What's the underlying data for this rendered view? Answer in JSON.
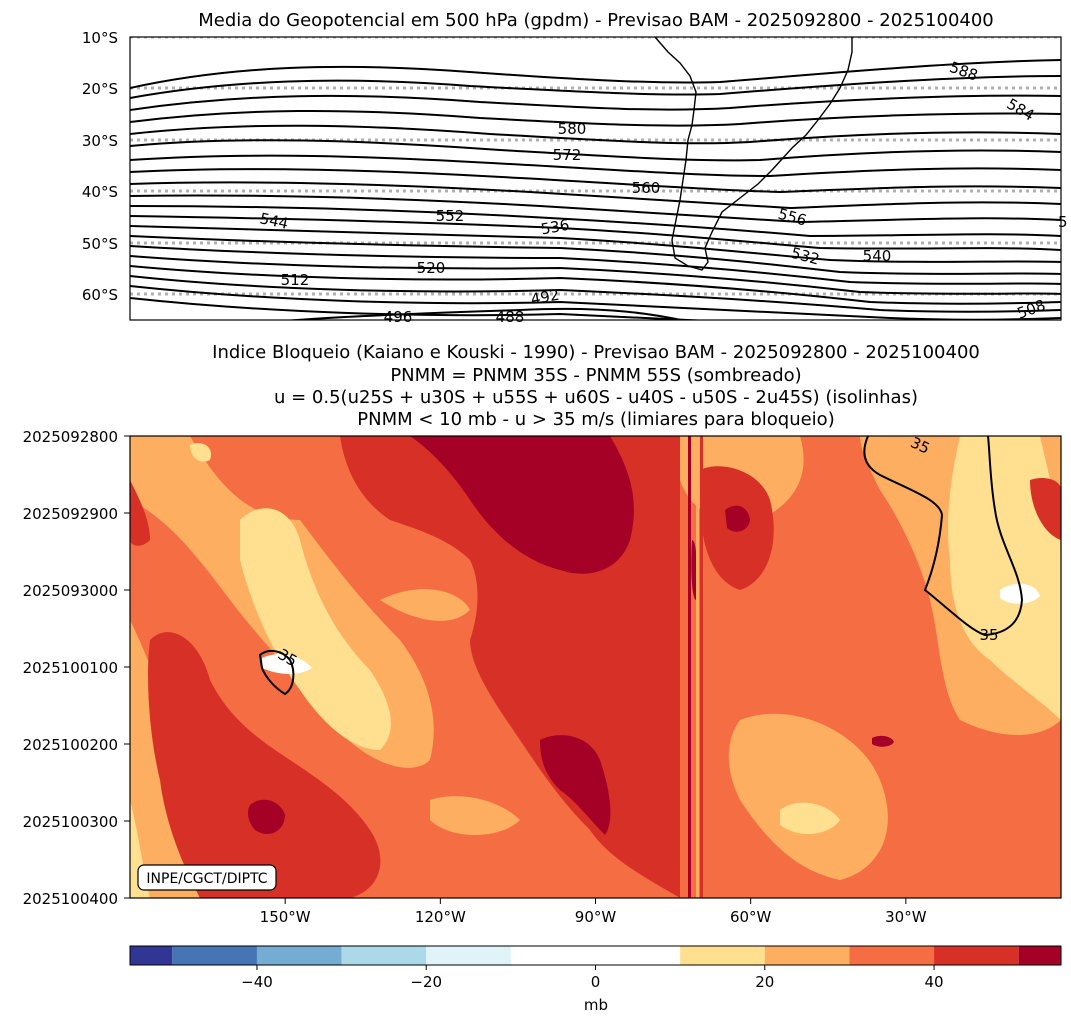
{
  "chart_data": [
    {
      "type": "contour",
      "title": "Media do Geopotencial em 500 hPa (gpdm) - Previsao BAM - 2025092800 - 2025100400",
      "y_ticks": [
        "10°S",
        "20°S",
        "30°S",
        "40°S",
        "50°S",
        "60°S"
      ],
      "ylim": [
        -65,
        -10
      ],
      "xlim": [
        -180,
        0
      ],
      "contour_labels": [
        "588",
        "584",
        "580",
        "572",
        "560",
        "556",
        "552",
        "544",
        "536",
        "532",
        "540",
        "520",
        "512",
        "492",
        "496",
        "488",
        "508",
        "5"
      ],
      "grid": "dotted gray parallels every 10°"
    },
    {
      "type": "heatmap",
      "title_lines": [
        "Indice Bloqueio (Kaiano e Kouski - 1990) - Previsao BAM - 2025092800 - 2025100400",
        "PNMM = PNMM 35S - PNMM 55S (sombreado)",
        "u = 0.5(u25S + u30S + u55S + u60S - u40S - u50S - 2u45S) (isolinhas)",
        "PNMM < 10 mb - u > 35 m/s (limiares para bloqueio)"
      ],
      "y_ticks": [
        "2025092800",
        "2025092900",
        "2025093000",
        "2025100100",
        "2025100200",
        "2025100300",
        "2025100400"
      ],
      "x_ticks": [
        "150°W",
        "120°W",
        "90°W",
        "60°W",
        "30°W"
      ],
      "x_values": [
        -150,
        -120,
        -90,
        -60,
        -30
      ],
      "xlim": [
        -180,
        0
      ],
      "contour_labels": [
        "35",
        "35",
        "35"
      ],
      "watermark": "INPE/CGCT/DIPTC"
    },
    {
      "type": "colorbar",
      "label": "mb",
      "ticks": [
        "−40",
        "−20",
        "0",
        "20",
        "40"
      ],
      "tick_values": [
        -40,
        -20,
        0,
        20,
        40
      ],
      "range": [
        -55,
        55
      ],
      "levels": [
        -55,
        -50,
        -40,
        -30,
        -20,
        -10,
        10,
        20,
        30,
        40,
        50,
        55
      ],
      "colors": [
        "#313695",
        "#4575b4",
        "#74add1",
        "#abd9e9",
        "#e0f3f8",
        "#ffffff",
        "#fee090",
        "#fdae61",
        "#f46d43",
        "#d73027",
        "#a50026"
      ]
    }
  ]
}
